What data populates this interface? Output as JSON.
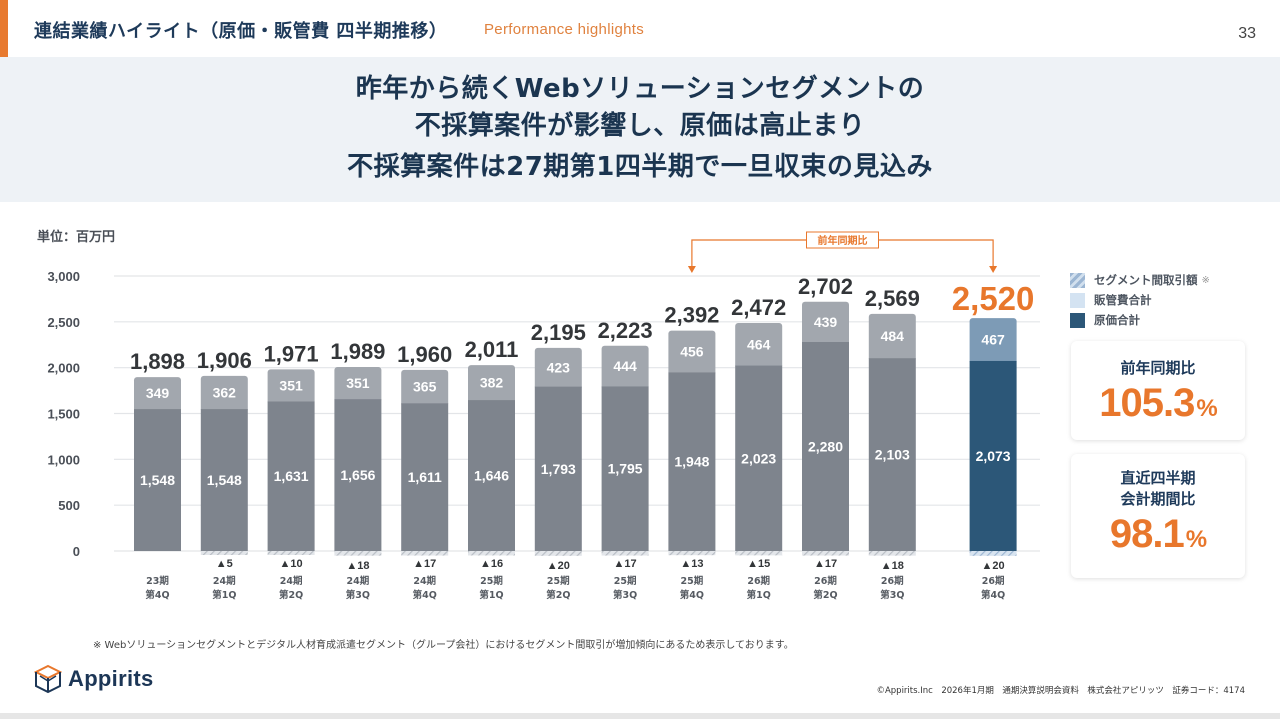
{
  "header": {
    "title": "連結業績ハイライト（原価・販管費 四半期推移）",
    "subtitle": "Performance highlights",
    "page_number": "33"
  },
  "banner": {
    "line1": "昨年から続くWebソリューションセグメントの",
    "line2": "不採算案件が影響し、原価は高止まり",
    "line3": "不採算案件は27期第1四半期で一旦収束の見込み"
  },
  "unit_label": "単位：百万円",
  "legend": {
    "items": [
      {
        "label": "セグメント間取引額",
        "note": "※",
        "icon": "hatch-swatch"
      },
      {
        "label": "販管費合計",
        "icon": "light-blue-swatch"
      },
      {
        "label": "原価合計",
        "icon": "navy-swatch"
      }
    ]
  },
  "kpis": [
    {
      "label_lines": [
        "前年同期比"
      ],
      "value": "105.3",
      "unit": "%"
    },
    {
      "label_lines": [
        "直近四半期",
        "会計期間比"
      ],
      "value": "98.1",
      "unit": "%"
    }
  ],
  "yoy_annotation": "前年同期比",
  "footnote": "※ Webソリューションセグメントとデジタル人材育成派遣セグメント（グループ会社）におけるセグメント間取引が増加傾向にあるため表示しております。",
  "footer": {
    "logo_text": "Appirits",
    "copyright": "©Appirits.Inc　2026年1月期　通期決算説明会資料　株式会社アピリッツ　証券コード：4174"
  },
  "colors": {
    "accent": "#e8772c",
    "past_cogs": "#7e848d",
    "past_sga": "#a2a7ae",
    "current_cogs": "#2c5778",
    "current_sga": "#7d9bb6",
    "navy_text": "#1e3a5a"
  },
  "chart_data": {
    "type": "bar",
    "stacked": true,
    "title": "",
    "xlabel": "",
    "ylabel": "単位：百万円",
    "ylim": [
      0,
      3000
    ],
    "yticks": [
      0,
      500,
      1000,
      1500,
      2000,
      2500,
      3000
    ],
    "ytick_labels": [
      "0",
      "500",
      "1,000",
      "1,500",
      "2,000",
      "2,500",
      "3,000"
    ],
    "grid": true,
    "legend_position": "right",
    "categories": [
      [
        "23期",
        "第4Q"
      ],
      [
        "24期",
        "第1Q"
      ],
      [
        "24期",
        "第2Q"
      ],
      [
        "24期",
        "第3Q"
      ],
      [
        "24期",
        "第4Q"
      ],
      [
        "25期",
        "第1Q"
      ],
      [
        "25期",
        "第2Q"
      ],
      [
        "25期",
        "第3Q"
      ],
      [
        "25期",
        "第4Q"
      ],
      [
        "26期",
        "第1Q"
      ],
      [
        "26期",
        "第2Q"
      ],
      [
        "26期",
        "第3Q"
      ],
      [
        "26期",
        "第4Q"
      ]
    ],
    "series": [
      {
        "name": "原価合計",
        "values": [
          1548,
          1548,
          1631,
          1656,
          1611,
          1646,
          1793,
          1795,
          1948,
          2023,
          2280,
          2103,
          2073
        ]
      },
      {
        "name": "販管費合計",
        "values": [
          349,
          362,
          351,
          351,
          365,
          382,
          423,
          444,
          456,
          464,
          439,
          484,
          467
        ]
      },
      {
        "name": "セグメント間取引額",
        "values": [
          0,
          -5,
          -10,
          -18,
          -17,
          -16,
          -20,
          -17,
          -13,
          -15,
          -17,
          -18,
          -20
        ],
        "labels": [
          "",
          "▲5",
          "▲10",
          "▲18",
          "▲17",
          "▲16",
          "▲20",
          "▲17",
          "▲13",
          "▲15",
          "▲17",
          "▲18",
          "▲20"
        ]
      }
    ],
    "totals": [
      1898,
      1906,
      1971,
      1989,
      1960,
      2011,
      2195,
      2223,
      2392,
      2472,
      2702,
      2569,
      2520
    ],
    "total_labels": [
      "1,898",
      "1,906",
      "1,971",
      "1,989",
      "1,960",
      "2,011",
      "2,195",
      "2,223",
      "2,392",
      "2,472",
      "2,702",
      "2,569",
      "2,520"
    ],
    "cogs_labels": [
      "1,548",
      "1,548",
      "1,631",
      "1,656",
      "1,611",
      "1,646",
      "1,793",
      "1,795",
      "1,948",
      "2,023",
      "2,280",
      "2,103",
      "2,073"
    ],
    "sga_labels": [
      "349",
      "362",
      "351",
      "351",
      "365",
      "382",
      "423",
      "444",
      "456",
      "464",
      "439",
      "484",
      "467"
    ],
    "highlight_index": 12,
    "annotation": {
      "text": "前年同期比",
      "from_index": 8,
      "to_index": 12
    }
  }
}
